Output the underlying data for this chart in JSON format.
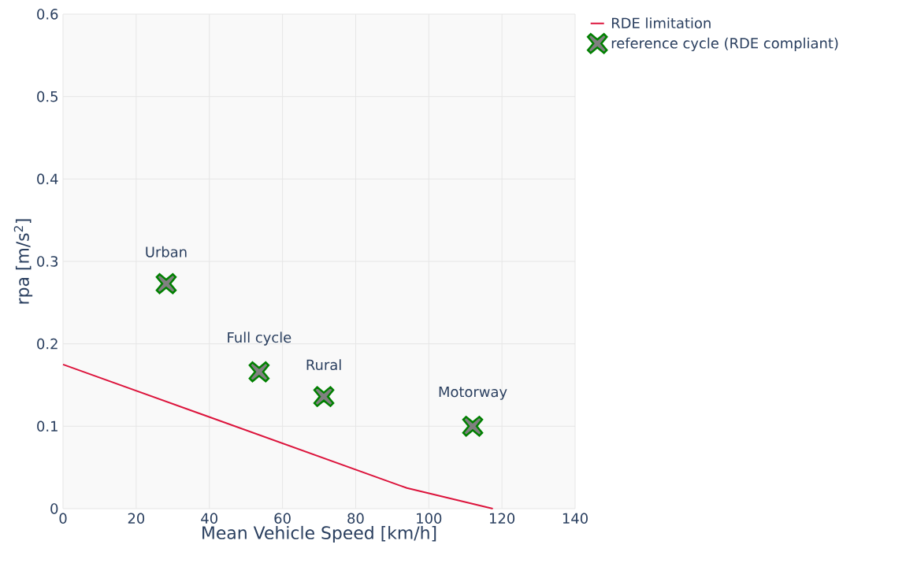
{
  "chart_data": {
    "type": "scatter",
    "xlabel": "Mean Vehicle Speed [km/h]",
    "ylabel": "rpa [m/s$^{2}$]",
    "xlim": [
      0,
      140
    ],
    "ylim": [
      0,
      0.6
    ],
    "xticks": [
      0,
      20,
      40,
      60,
      80,
      100,
      120,
      140
    ],
    "yticks": [
      0,
      0.1,
      0.2,
      0.3,
      0.4,
      0.5,
      0.6
    ],
    "grid": true,
    "legend": "top right",
    "series": [
      {
        "name": "RDE limitation",
        "type": "line",
        "marker": "none",
        "color": "#dc143c",
        "x": [
          0,
          94,
          117.5
        ],
        "values": [
          0.175,
          0.025,
          0
        ]
      },
      {
        "name": "reference cycle (RDE compliant)",
        "marker": "cross",
        "color": "#808080",
        "x": [
          28.2,
          53.6,
          71.3,
          112
        ],
        "values": [
          0.273,
          0.166,
          0.136,
          0.1
        ]
      }
    ],
    "annotations": [
      {
        "text": "Urban",
        "x": 28.2,
        "y": 0.273
      },
      {
        "text": "Full cycle",
        "x": 53.6,
        "y": 0.166
      },
      {
        "text": "Rural",
        "x": 71.3,
        "y": 0.136
      },
      {
        "text": "Motorway",
        "x": 112,
        "y": 0.1
      }
    ]
  }
}
